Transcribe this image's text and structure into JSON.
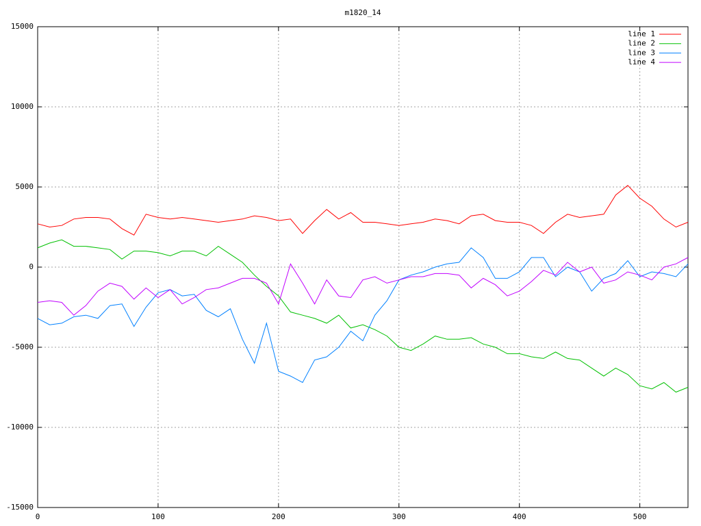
{
  "chart_data": {
    "type": "line",
    "title": "m1820_14",
    "x": [
      0,
      10,
      20,
      30,
      40,
      50,
      60,
      70,
      80,
      90,
      100,
      110,
      120,
      130,
      140,
      150,
      160,
      170,
      180,
      190,
      200,
      210,
      220,
      230,
      240,
      250,
      260,
      270,
      280,
      290,
      300,
      310,
      320,
      330,
      340,
      350,
      360,
      370,
      380,
      390,
      400,
      410,
      420,
      430,
      440,
      450,
      460,
      470,
      480,
      490,
      500,
      510,
      520,
      530,
      540
    ],
    "series": [
      {
        "name": "line 1",
        "color": "#ff0000",
        "values": [
          2700,
          2500,
          2600,
          3000,
          3100,
          3100,
          3000,
          2400,
          2000,
          3300,
          3100,
          3000,
          3100,
          3000,
          2900,
          2800,
          2900,
          3000,
          3200,
          3100,
          2900,
          3000,
          2100,
          2900,
          3600,
          3000,
          3400,
          2800,
          2800,
          2700,
          2600,
          2700,
          2800,
          3000,
          2900,
          2700,
          3200,
          3300,
          2900,
          2800,
          2800,
          2600,
          2100,
          2800,
          3300,
          3100,
          3200,
          3300,
          4500,
          5100,
          4300,
          3800,
          3000,
          2500,
          2800
        ]
      },
      {
        "name": "line 2",
        "color": "#00c000",
        "values": [
          1200,
          1500,
          1700,
          1300,
          1300,
          1200,
          1100,
          500,
          1000,
          1000,
          900,
          700,
          1000,
          1000,
          700,
          1300,
          800,
          300,
          -500,
          -1200,
          -1800,
          -2800,
          -3000,
          -3200,
          -3500,
          -3000,
          -3800,
          -3600,
          -3900,
          -4300,
          -5000,
          -5200,
          -4800,
          -4300,
          -4500,
          -4500,
          -4400,
          -4800,
          -5000,
          -5400,
          -5400,
          -5600,
          -5700,
          -5300,
          -5700,
          -5800,
          -6300,
          -6800,
          -6300,
          -6700,
          -7400,
          -7600,
          -7200,
          -7800,
          -7500
        ]
      },
      {
        "name": "line 3",
        "color": "#0080ff",
        "values": [
          -3200,
          -3600,
          -3500,
          -3100,
          -3000,
          -3200,
          -2400,
          -2300,
          -3700,
          -2500,
          -1600,
          -1400,
          -1800,
          -1700,
          -2700,
          -3100,
          -2600,
          -4500,
          -6000,
          -3500,
          -6500,
          -6800,
          -7200,
          -5800,
          -5600,
          -5000,
          -4000,
          -4600,
          -3000,
          -2100,
          -800,
          -500,
          -300,
          0,
          200,
          300,
          1200,
          600,
          -700,
          -700,
          -300,
          600,
          600,
          -600,
          0,
          -300,
          -1500,
          -700,
          -400,
          400,
          -600,
          -300,
          -400,
          -600,
          200
        ]
      },
      {
        "name": "line 4",
        "color": "#c000ff",
        "values": [
          -2200,
          -2100,
          -2200,
          -3000,
          -2400,
          -1500,
          -1000,
          -1200,
          -2000,
          -1300,
          -1900,
          -1400,
          -2300,
          -1900,
          -1400,
          -1300,
          -1000,
          -700,
          -700,
          -1000,
          -2300,
          200,
          -1000,
          -2300,
          -800,
          -1800,
          -1900,
          -800,
          -600,
          -1000,
          -800,
          -600,
          -600,
          -400,
          -400,
          -500,
          -1300,
          -700,
          -1100,
          -1800,
          -1500,
          -900,
          -200,
          -500,
          300,
          -300,
          0,
          -1000,
          -800,
          -300,
          -500,
          -800,
          0,
          200,
          600
        ]
      }
    ],
    "xlim": [
      0,
      540
    ],
    "xticks": [
      0,
      100,
      200,
      300,
      400,
      500
    ],
    "ylim": [
      -15000,
      15000
    ],
    "yticks": [
      -15000,
      -10000,
      -5000,
      0,
      5000,
      10000,
      15000
    ],
    "grid": true,
    "legend": "top-right"
  }
}
